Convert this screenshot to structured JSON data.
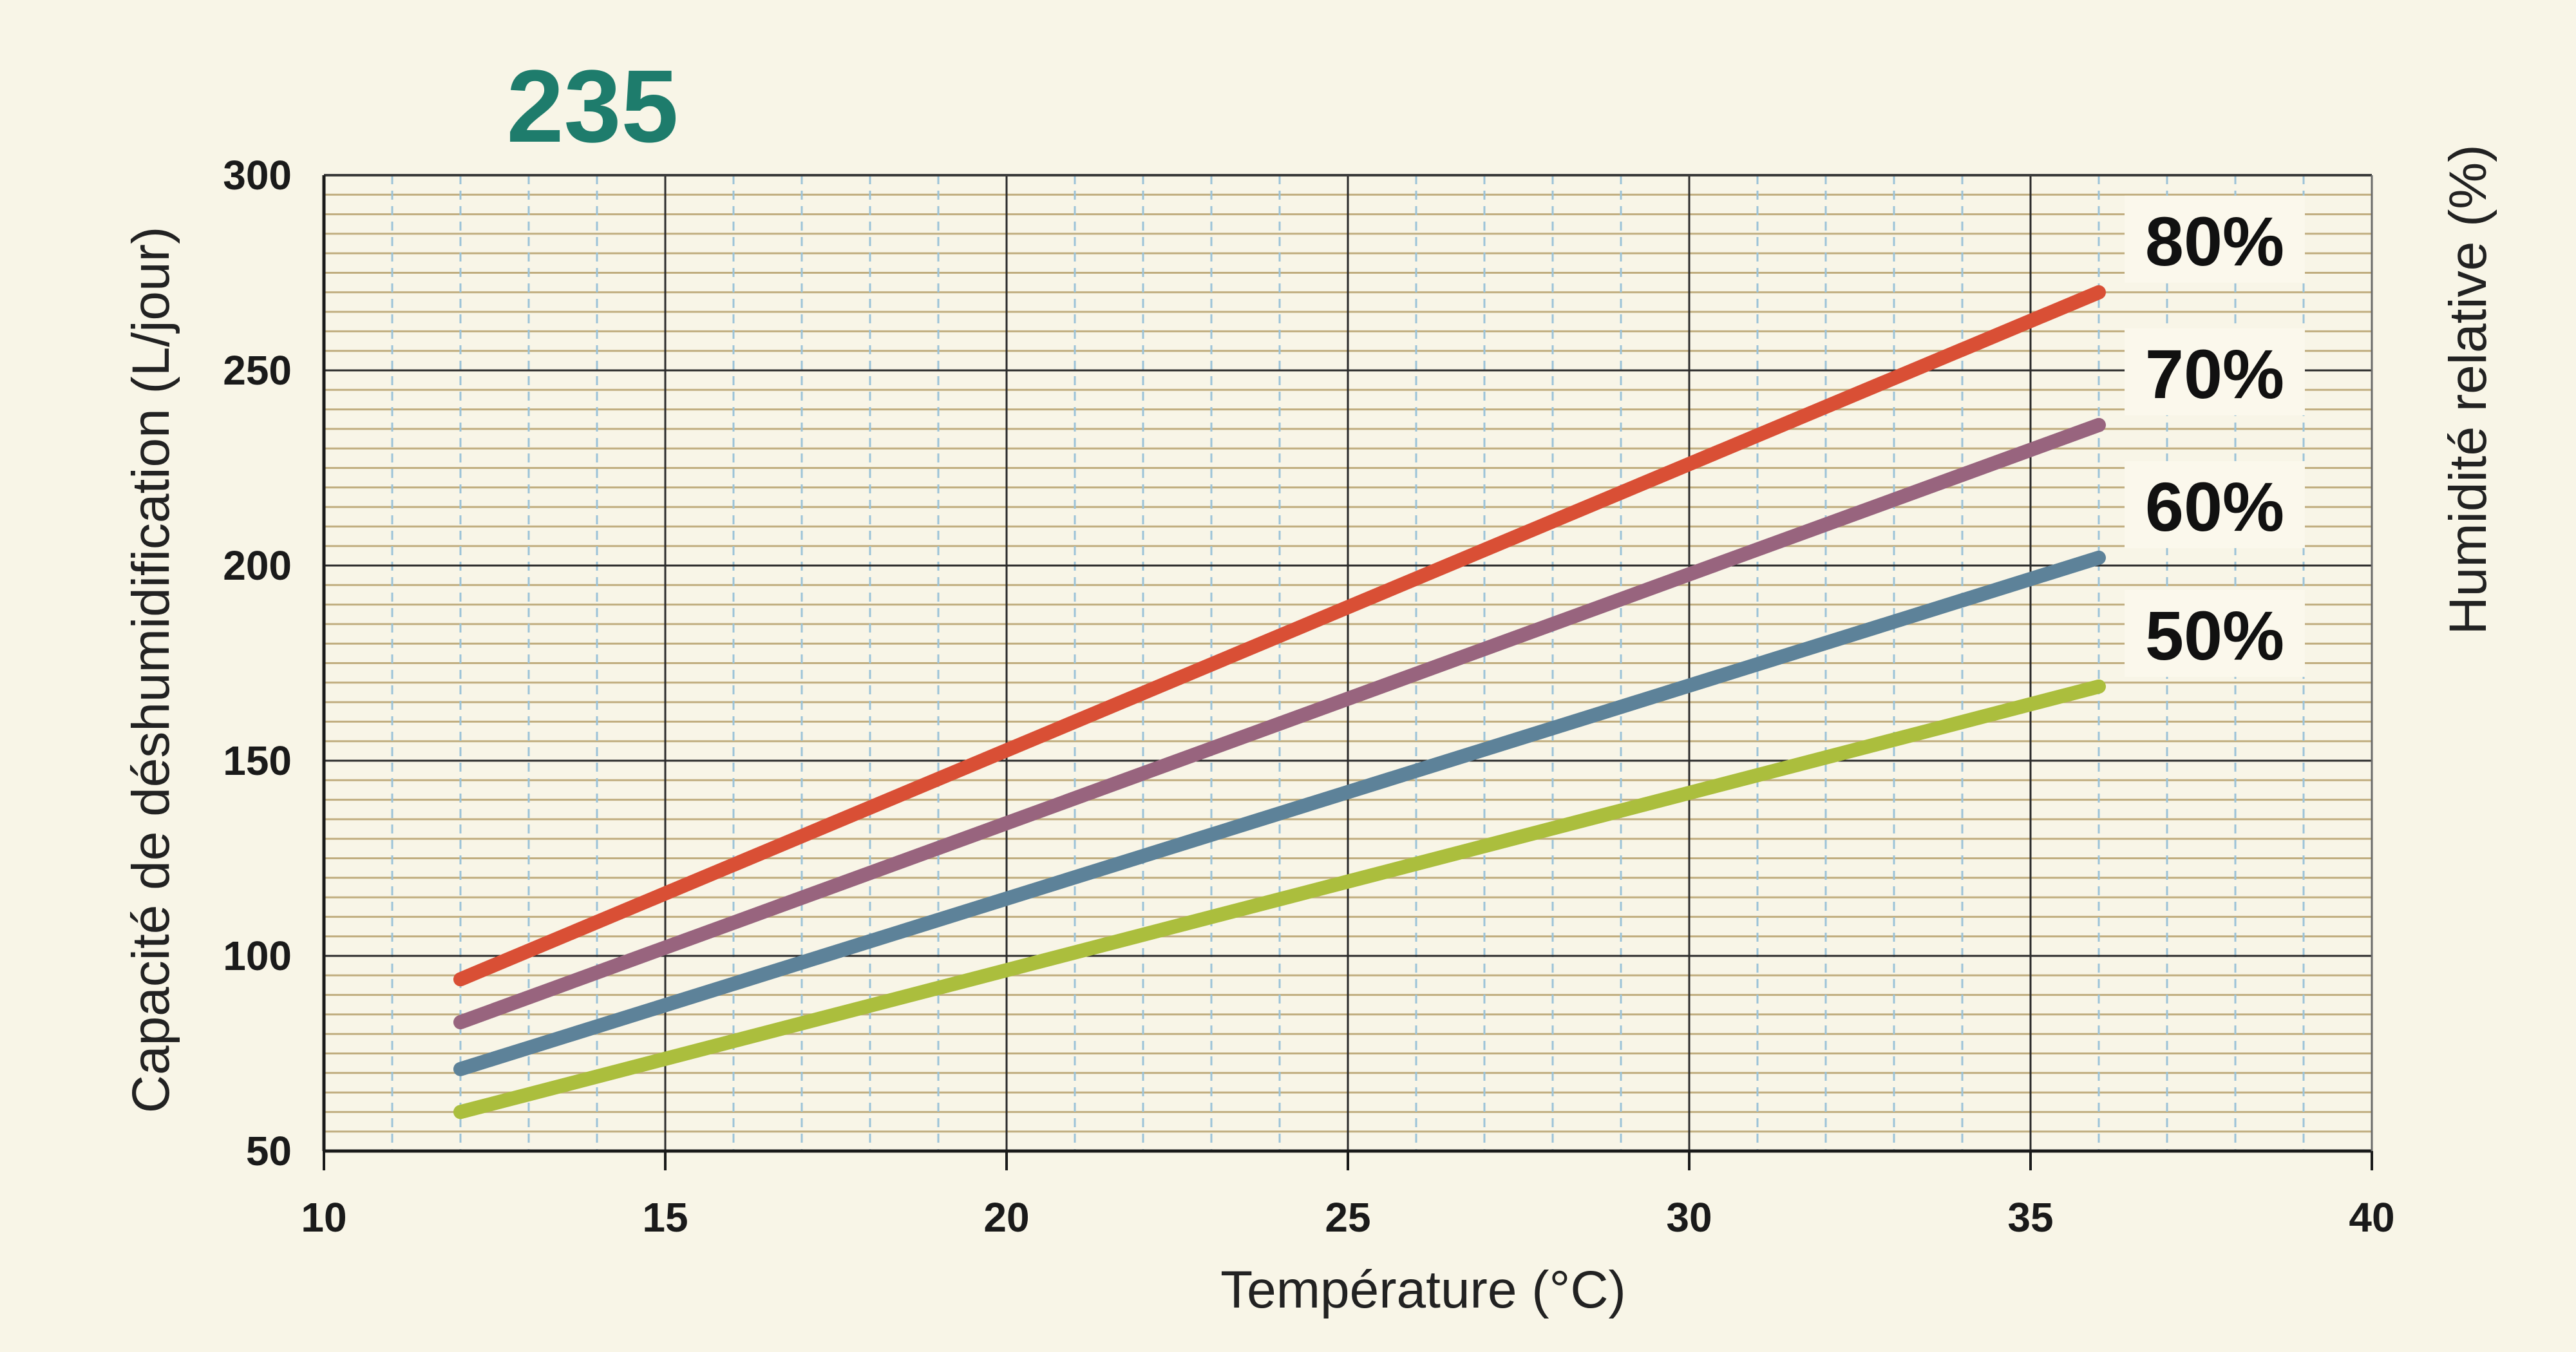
{
  "chart_data": {
    "type": "line",
    "title": "235",
    "xlabel": "Température (°C)",
    "ylabel": "Capacité de déshumidification (L/jour)",
    "y2label": "Humidité relative (%)",
    "xlim": [
      10,
      40
    ],
    "ylim": [
      50,
      300
    ],
    "x_ticks": [
      "10",
      "15",
      "20",
      "25",
      "30",
      "35",
      "40"
    ],
    "y_ticks": [
      "50",
      "100",
      "150",
      "200",
      "250",
      "300"
    ],
    "grid": true,
    "series": [
      {
        "name": "80%",
        "x": [
          12,
          36
        ],
        "y": [
          94,
          270
        ]
      },
      {
        "name": "70%",
        "x": [
          12,
          36
        ],
        "y": [
          83,
          236
        ]
      },
      {
        "name": "60%",
        "x": [
          12,
          36
        ],
        "y": [
          71,
          202
        ]
      },
      {
        "name": "50%",
        "x": [
          12,
          36
        ],
        "y": [
          60,
          169
        ]
      }
    ]
  },
  "colors": {
    "background": "#f8f5e7",
    "title": "#1e7c6c",
    "series": [
      "#d94f35",
      "#98647e",
      "#5d8299",
      "#abbe3d"
    ],
    "grid_major": "#2b2b2b",
    "grid_minor_h": "#c0ad7f",
    "grid_minor_v": "#9cc3d8"
  }
}
